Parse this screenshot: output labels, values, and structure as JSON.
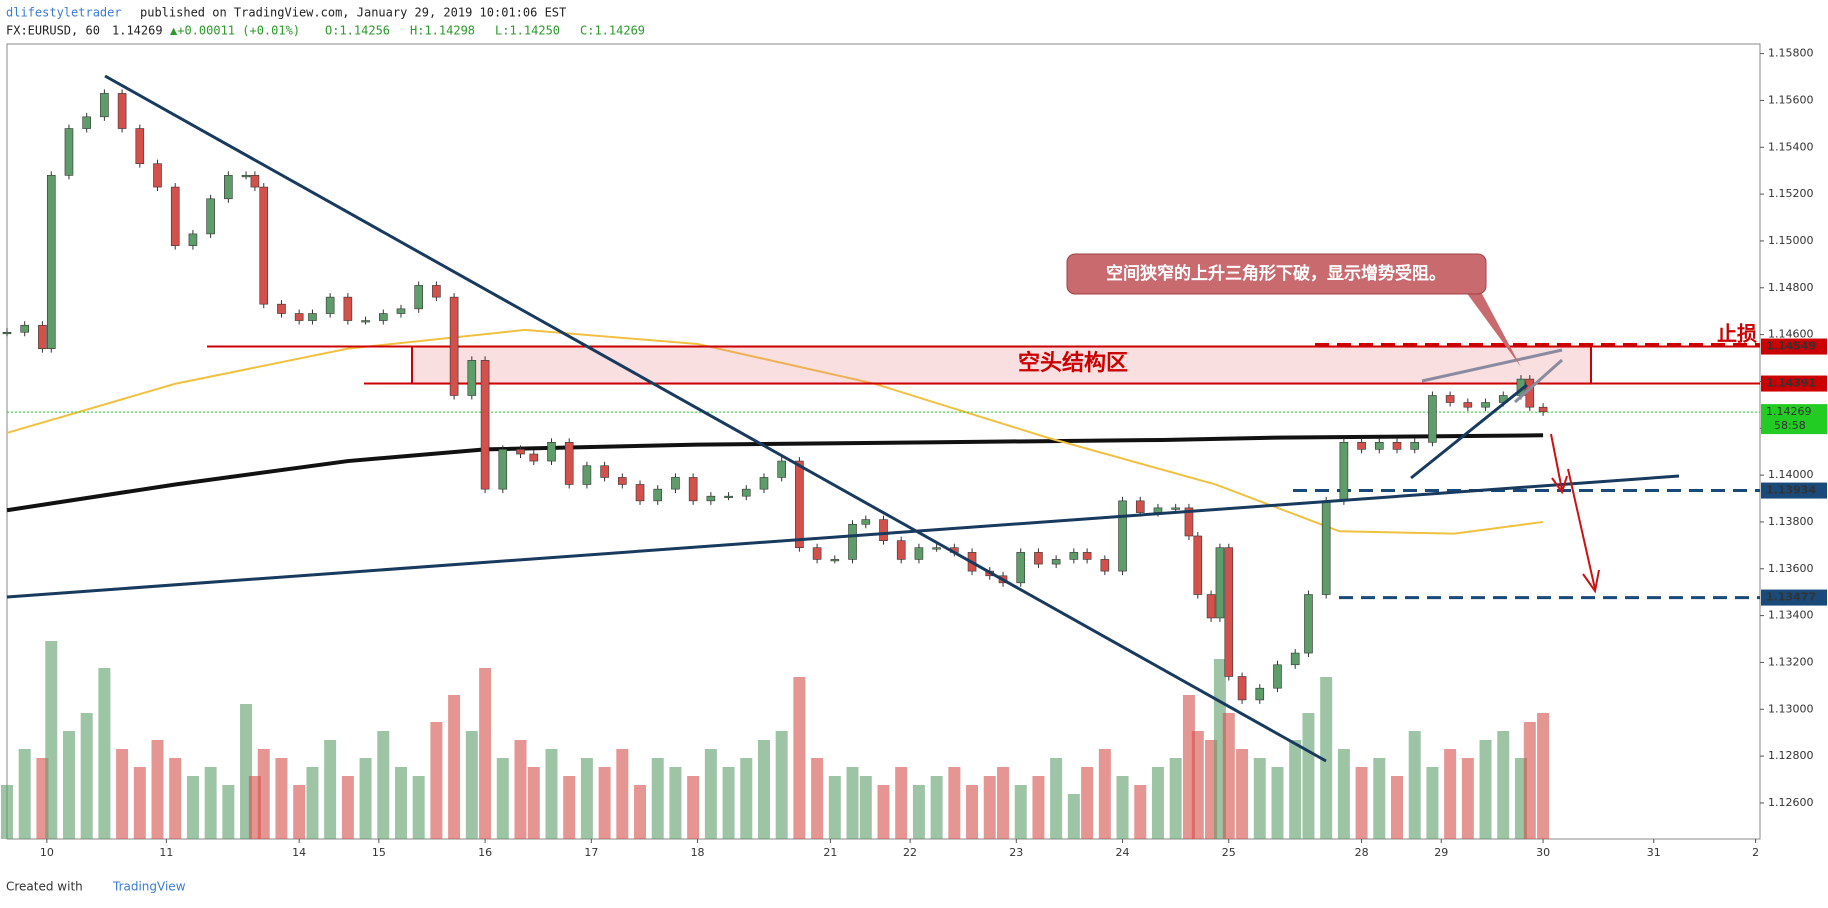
{
  "chart_data": {
    "type": "candlestick",
    "header": {
      "author": "dlifestyletrader",
      "published": "published on TradingView.com, January 29, 2019 10:01:06 EST",
      "symbol": "FX:EURUSD, 60",
      "last": "1.14269",
      "change": "▲+0.00011 (+0.01%)",
      "open": "O:1.14256",
      "high": "H:1.14298",
      "low": "L:1.14250",
      "close": "C:1.14269"
    },
    "annotations": {
      "callout": "空间狭窄的上升三角形下破，显示增势受阻。",
      "zone": "空头结构区",
      "stop": "止损",
      "countdown": "58:58"
    },
    "footer": {
      "created": "Created with",
      "brand": "TradingView"
    },
    "xlim": [
      0,
      396
    ],
    "xticks": [
      {
        "value": 9,
        "label": "10"
      },
      {
        "value": 36,
        "label": "11"
      },
      {
        "value": 66,
        "label": "14"
      },
      {
        "value": 84,
        "label": "15"
      },
      {
        "value": 108,
        "label": "16"
      },
      {
        "value": 132,
        "label": "17"
      },
      {
        "value": 156,
        "label": "18"
      },
      {
        "value": 186,
        "label": "21"
      },
      {
        "value": 204,
        "label": "22"
      },
      {
        "value": 228,
        "label": "23"
      },
      {
        "value": 252,
        "label": "24"
      },
      {
        "value": 276,
        "label": "25"
      },
      {
        "value": 306,
        "label": "28"
      },
      {
        "value": 324,
        "label": "29"
      },
      {
        "value": 347,
        "label": "30"
      },
      {
        "value": 372,
        "label": "31"
      },
      {
        "value": 395,
        "label": "2"
      }
    ],
    "ylim": [
      1.12446,
      1.15841
    ],
    "yticks": [
      {
        "value": 1.158,
        "label": "1.15800"
      },
      {
        "value": 1.156,
        "label": "1.15600"
      },
      {
        "value": 1.154,
        "label": "1.15400"
      },
      {
        "value": 1.152,
        "label": "1.15200"
      },
      {
        "value": 1.15,
        "label": "1.15000"
      },
      {
        "value": 1.148,
        "label": "1.14800"
      },
      {
        "value": 1.146,
        "label": "1.14600"
      },
      {
        "value": 1.144,
        "label": "1.14400"
      },
      {
        "value": 1.142,
        "label": "1.14200"
      },
      {
        "value": 1.14,
        "label": "1.14000"
      },
      {
        "value": 1.138,
        "label": "1.13800"
      },
      {
        "value": 1.136,
        "label": "1.13600"
      },
      {
        "value": 1.134,
        "label": "1.13400"
      },
      {
        "value": 1.132,
        "label": "1.13200"
      },
      {
        "value": 1.13,
        "label": "1.13000"
      },
      {
        "value": 1.128,
        "label": "1.12800"
      },
      {
        "value": 1.126,
        "label": "1.12600"
      }
    ],
    "up_color": "#5e9c6a",
    "down_color": "#d4504a",
    "x": [
      0,
      4,
      8,
      10,
      14,
      18,
      22,
      26,
      30,
      34,
      38,
      42,
      46,
      50,
      54,
      56,
      58,
      62,
      66,
      69,
      73,
      77,
      81,
      85,
      89,
      93,
      97,
      101,
      105,
      108,
      112,
      116,
      119,
      123,
      127,
      131,
      135,
      139,
      143,
      147,
      151,
      155,
      159,
      163,
      167,
      171,
      175,
      179,
      183,
      187,
      191,
      194,
      198,
      202,
      206,
      210,
      214,
      218,
      222,
      225,
      229,
      233,
      237,
      241,
      244,
      248,
      252,
      256,
      260,
      264,
      267,
      269,
      272,
      274,
      276,
      279,
      283,
      287,
      291,
      294,
      298,
      302,
      306,
      310,
      314,
      318,
      322,
      326,
      330,
      334,
      338,
      342,
      344,
      347
    ],
    "close": [
      1.1461,
      1.1464,
      1.1454,
      1.1528,
      1.1548,
      1.1553,
      1.1563,
      1.1548,
      1.1533,
      1.1523,
      1.1498,
      1.1503,
      1.1518,
      1.1528,
      1.1528,
      1.1523,
      1.1473,
      1.1469,
      1.1466,
      1.1469,
      1.1476,
      1.1466,
      1.1466,
      1.1469,
      1.1471,
      1.1481,
      1.1476,
      1.1434,
      1.1449,
      1.1394,
      1.1411,
      1.1409,
      1.1406,
      1.1414,
      1.1396,
      1.1404,
      1.1399,
      1.1396,
      1.1389,
      1.1394,
      1.1399,
      1.1389,
      1.1391,
      1.1391,
      1.1394,
      1.1399,
      1.1406,
      1.1369,
      1.1364,
      1.1364,
      1.1379,
      1.1381,
      1.1372,
      1.1364,
      1.1369,
      1.1369,
      1.1367,
      1.1359,
      1.1357,
      1.1354,
      1.1367,
      1.1362,
      1.1364,
      1.1367,
      1.1364,
      1.1359,
      1.1389,
      1.1384,
      1.1386,
      1.1386,
      1.1374,
      1.1349,
      1.1339,
      1.1369,
      1.1314,
      1.1304,
      1.1309,
      1.1319,
      1.1324,
      1.1349,
      1.1389,
      1.1414,
      1.1411,
      1.1414,
      1.1411,
      1.1414,
      1.1434,
      1.1431,
      1.1429,
      1.1431,
      1.1434,
      1.1441,
      1.1429,
      1.1427
    ],
    "volume": [
      30,
      50,
      45,
      110,
      60,
      70,
      95,
      50,
      40,
      55,
      45,
      35,
      40,
      30,
      75,
      35,
      50,
      45,
      30,
      40,
      55,
      35,
      45,
      60,
      40,
      35,
      65,
      80,
      60,
      95,
      45,
      55,
      40,
      50,
      35,
      45,
      40,
      50,
      30,
      45,
      40,
      35,
      50,
      40,
      45,
      55,
      60,
      90,
      45,
      35,
      40,
      35,
      30,
      40,
      30,
      35,
      40,
      30,
      35,
      40,
      30,
      35,
      45,
      25,
      40,
      50,
      35,
      30,
      40,
      45,
      80,
      60,
      55,
      100,
      70,
      50,
      45,
      40,
      55,
      70,
      90,
      50,
      40,
      45,
      35,
      60,
      40,
      50,
      45,
      55,
      60,
      45,
      65,
      70
    ],
    "lines": [
      {
        "color": "#111111",
        "width": 4,
        "x": [
          0,
          38,
          77,
          108,
          156,
          208,
          261,
          287,
          347
        ],
        "values": [
          1.1385,
          1.1396,
          1.1406,
          1.1411,
          1.1413,
          1.1414,
          1.1415,
          1.1416,
          1.1417
        ]
      },
      {
        "color": "#f0c040",
        "width": 2,
        "x": [
          0,
          38,
          77,
          117,
          156,
          196,
          235,
          273,
          301,
          327,
          347
        ],
        "values": [
          1.1418,
          1.1439,
          1.1454,
          1.1462,
          1.1456,
          1.1439,
          1.1416,
          1.1396,
          1.1376,
          1.1375,
          1.138
        ]
      }
    ],
    "levels": [
      {
        "value": 1.14549,
        "color": "#cc0000"
      },
      {
        "value": 1.14391,
        "color": "#cc0000"
      },
      {
        "value": 1.13934,
        "color": "#1a4a7a"
      },
      {
        "value": 1.13477,
        "color": "#1a4a7a"
      }
    ],
    "current": {
      "value": 1.14269,
      "color": "#22cc22"
    }
  }
}
